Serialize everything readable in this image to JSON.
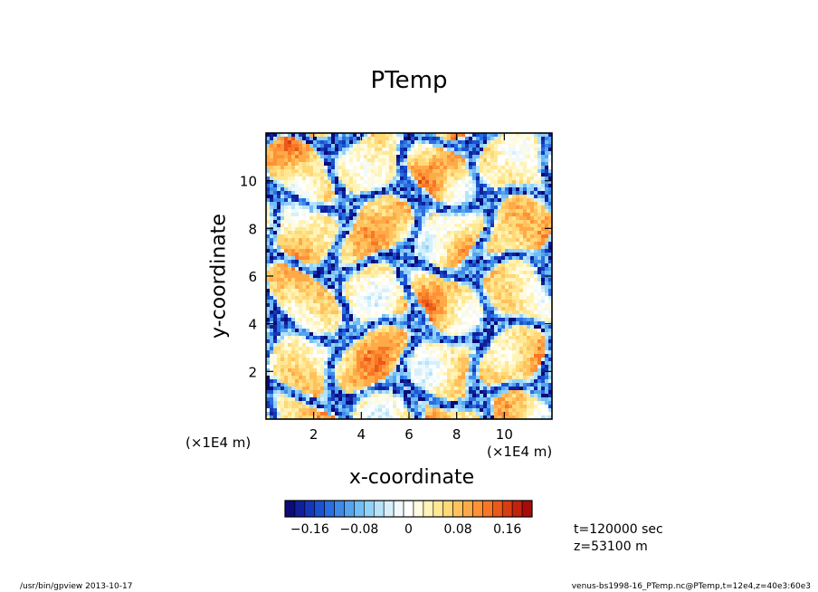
{
  "chart_data": {
    "type": "heatmap",
    "title": "PTemp",
    "xlabel": "x-coordinate",
    "ylabel": "y-coordinate",
    "x_scale_label": "(×1E4 m)",
    "y_scale_label": "(×1E4 m)",
    "xlim": [
      0,
      12
    ],
    "ylim": [
      0,
      12
    ],
    "x_ticks": [
      2,
      4,
      6,
      8,
      10
    ],
    "y_ticks": [
      2,
      4,
      6,
      8,
      10
    ],
    "x_tick_labels": [
      "2",
      "4",
      "6",
      "8",
      "10"
    ],
    "y_tick_labels": [
      "2",
      "4",
      "6",
      "8",
      "10"
    ],
    "colorbar": {
      "min": -0.2,
      "max": 0.2,
      "tick_values": [
        -0.16,
        -0.08,
        0,
        0.08,
        0.16
      ],
      "tick_labels": [
        "−0.16",
        "−0.08",
        "0",
        "0.08",
        "0.16"
      ],
      "colors": [
        "#0b0b7a",
        "#10209a",
        "#1537b8",
        "#1a52d0",
        "#2a6ee0",
        "#3d8ae8",
        "#55a4ef",
        "#72bdf4",
        "#92d2f7",
        "#b6e3f9",
        "#d6f0fb",
        "#f0f9fc",
        "#ffffff",
        "#fffbe0",
        "#fff3b8",
        "#ffe894",
        "#ffd877",
        "#ffc25e",
        "#ffaa48",
        "#ff9136",
        "#f77726",
        "#ea5a1a",
        "#d83d12",
        "#c2230e",
        "#a60d0a"
      ]
    },
    "description_time": "t=120000 sec",
    "description_height": "z=53100 m"
  },
  "info": {
    "time": "t=120000 sec",
    "height": "z=53100 m"
  },
  "footer": {
    "left": "/usr/bin/gpview   2013-10-17",
    "right": "venus-bs1998-16_PTemp.nc@PTemp,t=12e4,z=40e3:60e3"
  }
}
